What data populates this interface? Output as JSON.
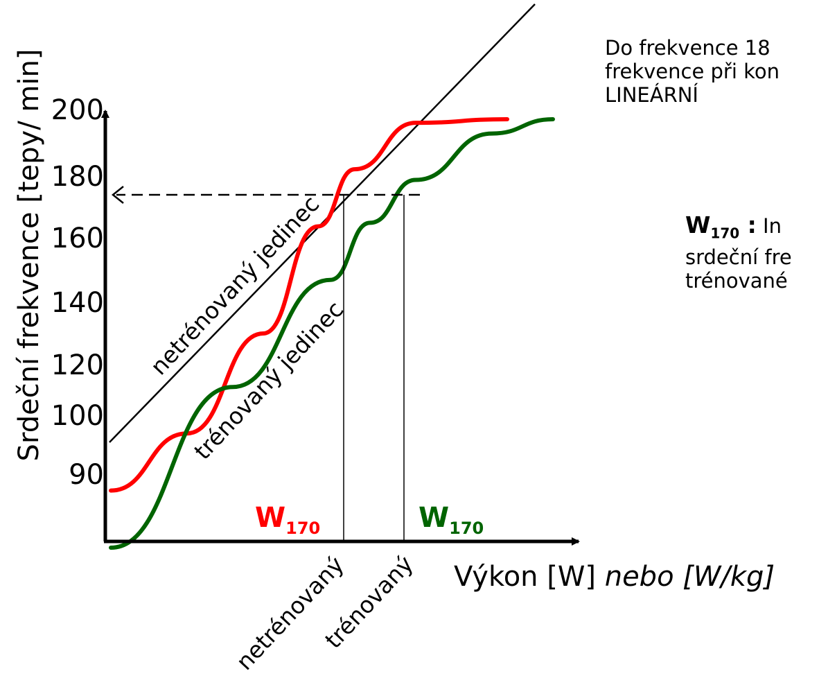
{
  "chart_data": {
    "type": "line",
    "ylabel": "Srdeční  frekvence [tepy/ min]",
    "xlabel": "Výkon [W]",
    "xlabel_italic": "nebo [W/kg]",
    "y_ticks": [
      "200",
      "180",
      "160",
      "140",
      "120",
      "100",
      "90"
    ],
    "x_categories": [
      "netrénovaný",
      "trénovaný"
    ],
    "reference_line": {
      "name": "linear",
      "color": "#000000"
    },
    "threshold": {
      "value": 170,
      "style": "dashed",
      "arrow": "left"
    },
    "series": [
      {
        "label": "netrénovaný jedinec",
        "color": "#ff0000",
        "w170_x": "netrénovaný",
        "points": [
          [
            0,
            96
          ],
          [
            25,
            112
          ],
          [
            50,
            140
          ],
          [
            68,
            170
          ],
          [
            80,
            186
          ],
          [
            100,
            199
          ],
          [
            130,
            200
          ]
        ]
      },
      {
        "label": "trénovaný jedinec",
        "color": "#006400",
        "w170_x": "trénovaný",
        "points": [
          [
            0,
            80
          ],
          [
            40,
            125
          ],
          [
            72,
            155
          ],
          [
            85,
            171
          ],
          [
            100,
            183
          ],
          [
            125,
            196
          ],
          [
            145,
            200
          ]
        ]
      }
    ],
    "w170_labels": [
      {
        "main": "W",
        "sub": "170",
        "color": "#ff0000"
      },
      {
        "main": "W",
        "sub": "170",
        "color": "#006400"
      }
    ]
  },
  "notes": {
    "top_lines": [
      "Do frekvence 18",
      "frekvence při kon",
      "LINEÁRNÍ"
    ],
    "w170_bold": "W",
    "w170_sub": "170",
    "w170_sep": " :",
    "w170_first": " In",
    "w170_lines": [
      "srdeční fre",
      "trénované"
    ]
  }
}
